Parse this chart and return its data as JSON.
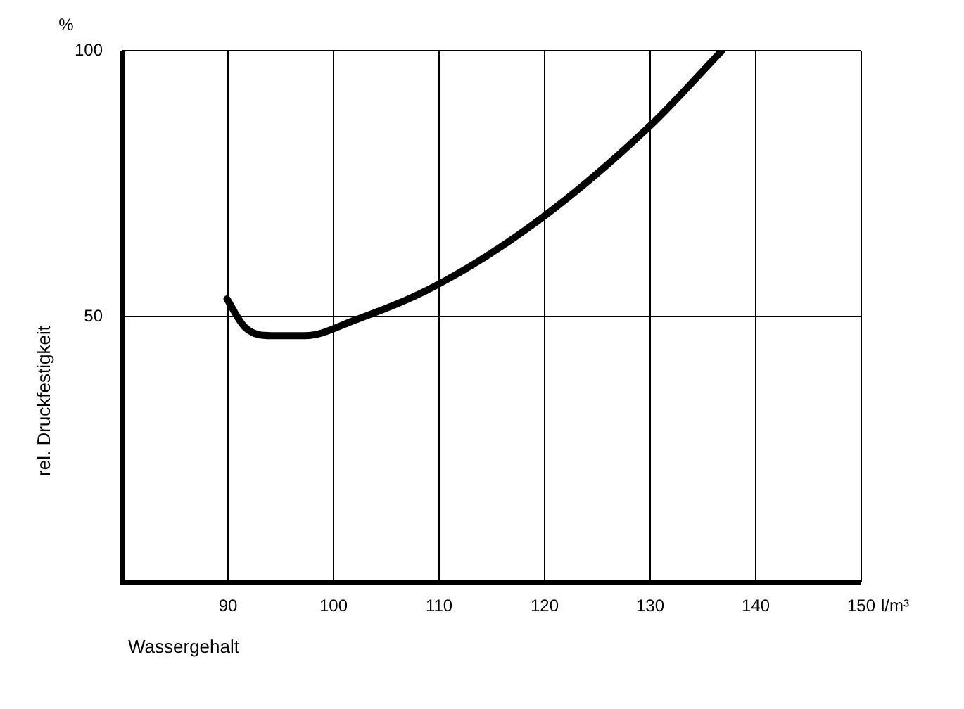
{
  "chart_data": {
    "type": "line",
    "xlabel": "Wassergehalt",
    "ylabel": "rel. Druckfestigkeit",
    "annotations": [
      "%",
      "l/m³"
    ],
    "series": [
      {
        "color": "#000000",
        "x": [
          89.9,
          91.6,
          94.1,
          97.3,
          102,
          109.6,
          119.5,
          129.9,
          136.8
        ],
        "values": [
          53.3,
          48,
          46.4,
          46.4,
          49.3,
          55.7,
          68.2,
          85.7,
          100
        ]
      }
    ],
    "xlim": [
      80,
      150
    ],
    "xticks": [
      90,
      100,
      110,
      120,
      130,
      140,
      150
    ],
    "ylim": [
      0,
      100
    ],
    "yticks": [
      50,
      100
    ],
    "grid": true,
    "legend": false,
    "marker": "none",
    "line_style": "solid"
  }
}
